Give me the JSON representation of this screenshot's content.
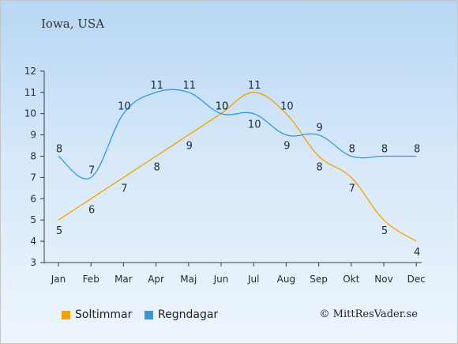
{
  "place": "Iowa, USA",
  "copyright": "© MittResVader.se",
  "colors": {
    "sun": "#f5a000",
    "rain": "#3498e0",
    "axis": "#3c3c3c"
  },
  "legend": {
    "sun_label": "Soltimmar",
    "rain_label": "Regndagar"
  },
  "chart_data": {
    "type": "line",
    "title": "Iowa, USA",
    "xlabel": "",
    "ylabel": "",
    "categories": [
      "Jan",
      "Feb",
      "Mar",
      "Apr",
      "Maj",
      "Jun",
      "Jul",
      "Aug",
      "Sep",
      "Okt",
      "Nov",
      "Dec"
    ],
    "ylim": [
      3,
      12
    ],
    "yticks": [
      "3",
      "4",
      "5",
      "6",
      "7",
      "8",
      "9",
      "10",
      "11",
      "12"
    ],
    "grid": false,
    "legend_position": "bottom-left",
    "series": [
      {
        "name": "Soltimmar",
        "color": "#f5a000",
        "values": [
          5,
          6,
          7,
          8,
          9,
          10,
          11,
          10,
          8,
          7,
          5,
          4
        ]
      },
      {
        "name": "Regndagar",
        "color": "#3498e0",
        "values": [
          8,
          7,
          10,
          11,
          11,
          10,
          10,
          9,
          9,
          8,
          8,
          8
        ]
      }
    ]
  }
}
